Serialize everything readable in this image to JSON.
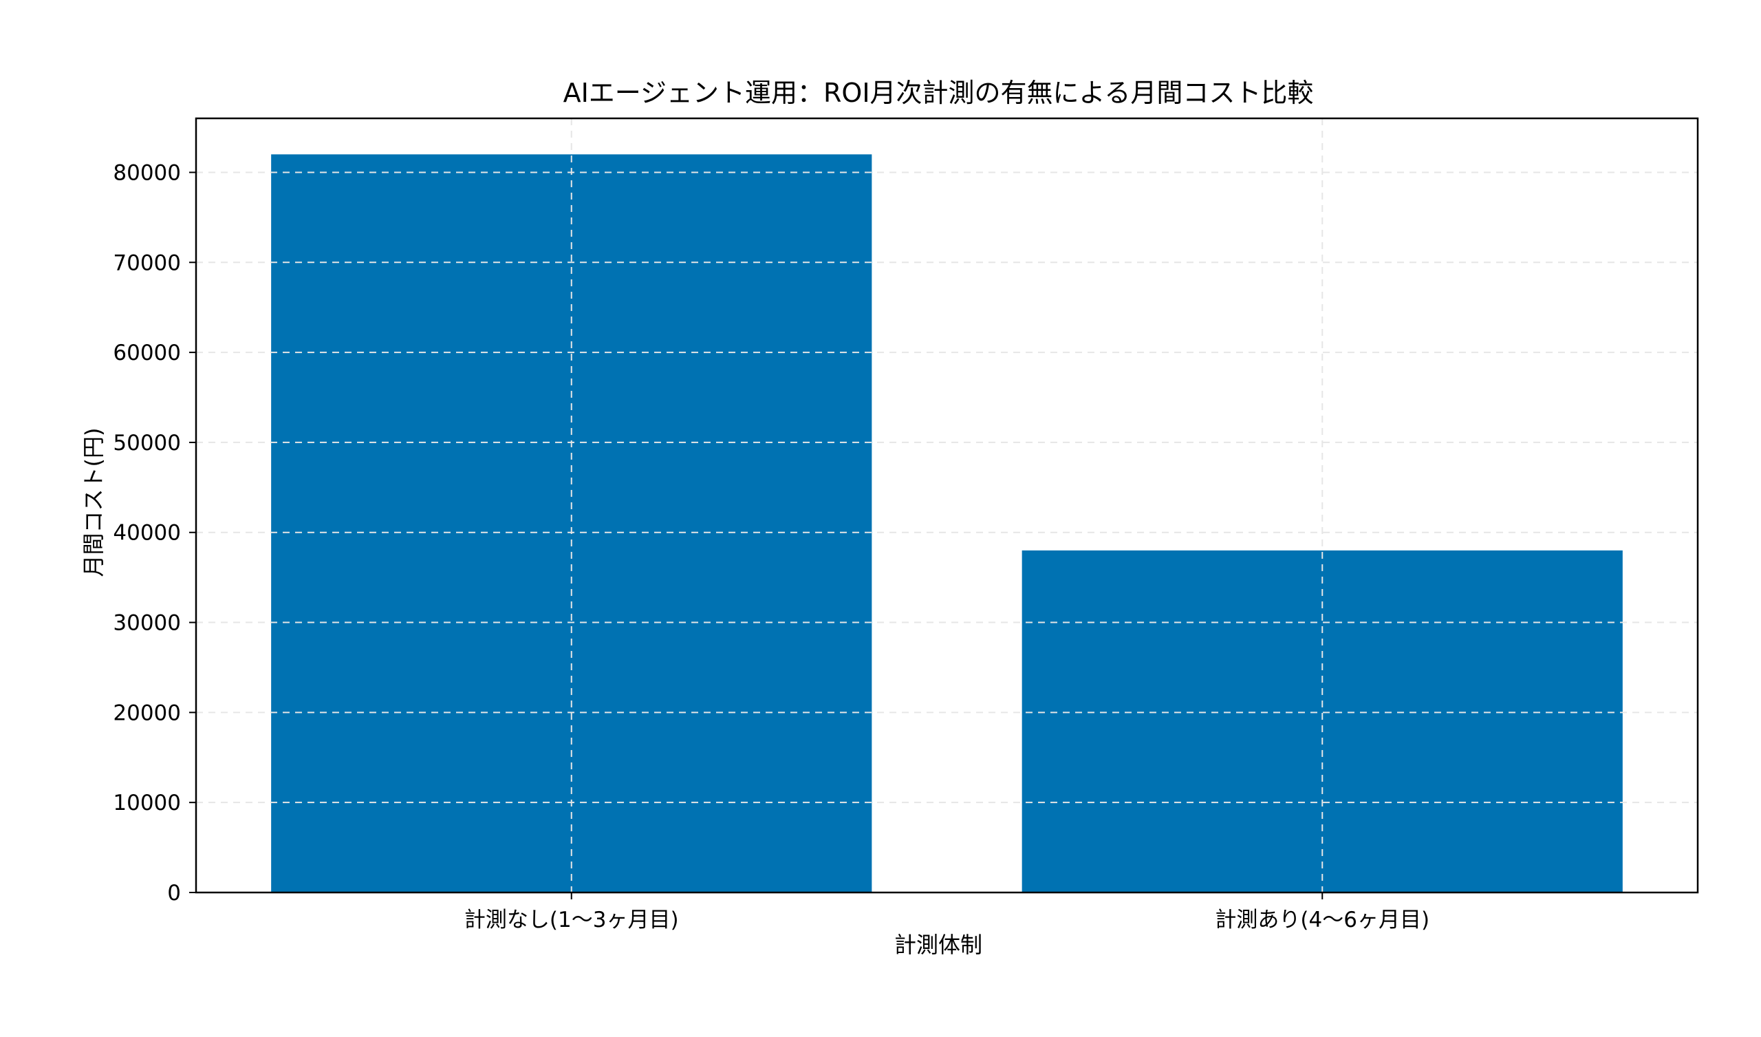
{
  "chart_data": {
    "type": "bar",
    "title": "AIエージェント運用：ROI月次計測の有無による月間コスト比較",
    "xlabel": "計測体制",
    "ylabel": "月間コスト(円)",
    "categories": [
      "計測なし(1〜3ヶ月目)",
      "計測あり(4〜6ヶ月目)"
    ],
    "values": [
      82000,
      38000
    ],
    "ylim": [
      0,
      86000
    ],
    "yticks": [
      0,
      10000,
      20000,
      30000,
      40000,
      50000,
      60000,
      70000,
      80000
    ],
    "grid": true,
    "legend": "none",
    "bar_color": "#0072b2",
    "grid_color": "#e6e6e6"
  }
}
